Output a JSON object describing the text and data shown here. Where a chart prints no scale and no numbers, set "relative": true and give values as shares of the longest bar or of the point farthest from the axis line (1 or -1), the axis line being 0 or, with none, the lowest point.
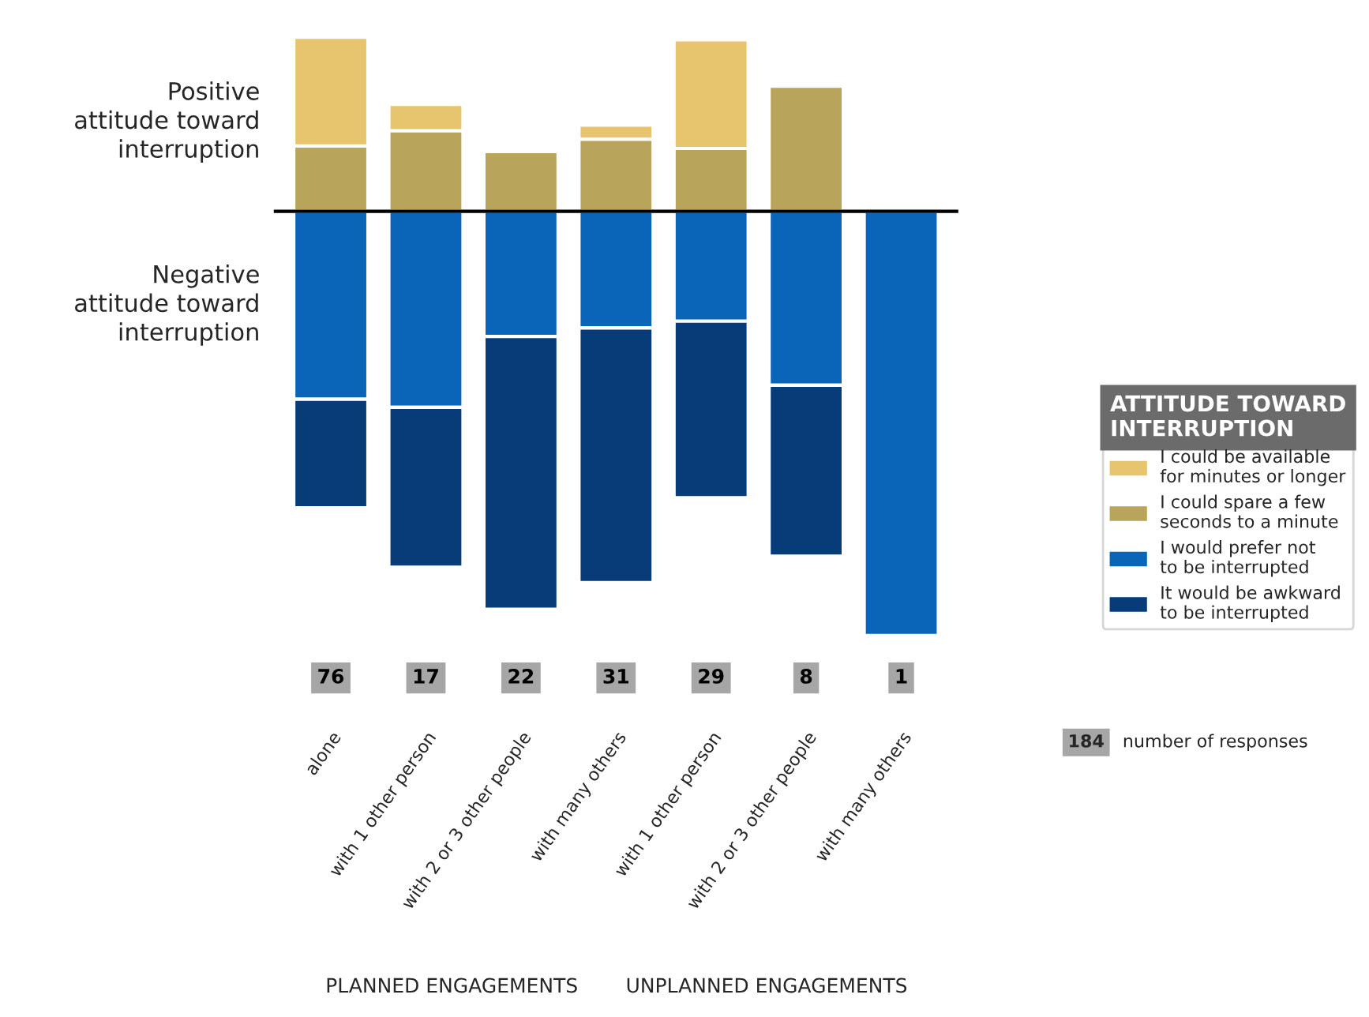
{
  "chart_data": {
    "type": "bar",
    "stacked": true,
    "relative": true,
    "legend": "right",
    "legend_title": "ATTITUDE TOWARD INTERRUPTION",
    "categories": [
      "alone",
      "with 1 other person",
      "with 2 or 3 other people",
      "with many others",
      "with 1 other person",
      "with 2 or 3 other people",
      "with many others"
    ],
    "series": [
      {
        "name": "I could spare a few seconds to a minute",
        "color": "#b8a45a",
        "values": [
          0.154,
          0.19,
          0.141,
          0.17,
          0.148,
          0.295,
          null
        ]
      },
      {
        "name": "I could be available for minutes or longer",
        "color": "#e6c56e",
        "values": [
          0.256,
          0.062,
          null,
          0.033,
          0.256,
          null,
          null
        ]
      },
      {
        "name": "I would prefer not to be interrupted",
        "color": "#0a64b8",
        "values": [
          -0.443,
          -0.462,
          -0.295,
          -0.275,
          -0.259,
          -0.41,
          -1
        ]
      },
      {
        "name": "It would be awkward to be interrupted",
        "color": "#073c78",
        "values": [
          -0.256,
          -0.377,
          -0.643,
          -0.6,
          -0.416,
          -0.403,
          null
        ]
      }
    ],
    "annotations": [
      "76",
      "17",
      "22",
      "31",
      "29",
      "8",
      "1",
      "Positive\nattitude toward\ninterruption",
      "Negative\nattitude toward\ninterruption",
      "PLANNED ENGAGEMENTS",
      "UNPLANNED ENGAGEMENTS",
      "184",
      "number of responses"
    ]
  }
}
